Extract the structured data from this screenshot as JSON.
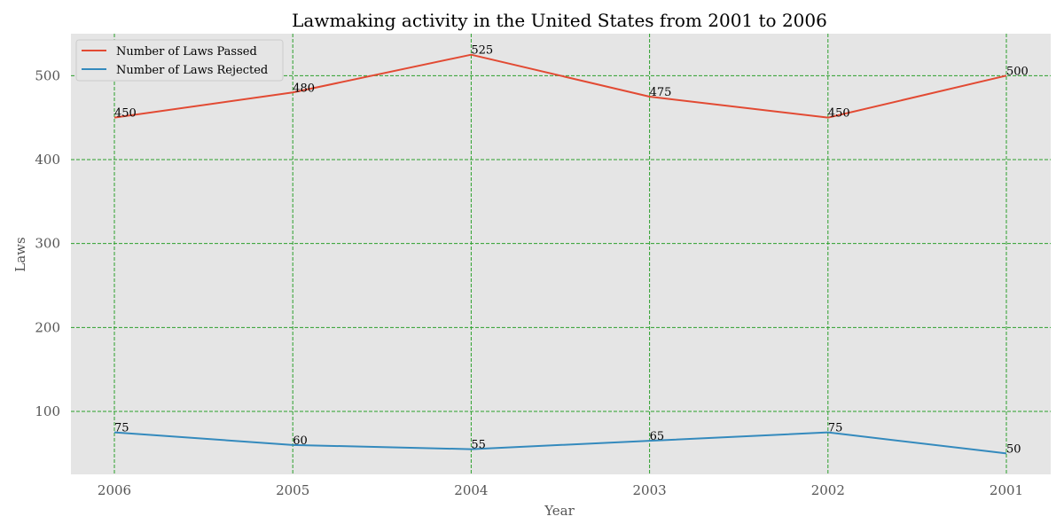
{
  "chart_data": {
    "type": "line",
    "title": "Lawmaking activity in the United States from 2001 to 2006",
    "xlabel": "Year",
    "ylabel": "Laws",
    "categories": [
      "2006",
      "2005",
      "2004",
      "2003",
      "2002",
      "2001"
    ],
    "ylim": [
      25,
      550
    ],
    "yticks": [
      100,
      200,
      300,
      400,
      500
    ],
    "grid": true,
    "grid_color": "#2ca02c",
    "plot_background": "#e5e5e5",
    "legend_position": "upper-left",
    "series": [
      {
        "name": "Number of Laws Passed",
        "color": "#e24a33",
        "values": [
          450,
          480,
          525,
          475,
          450,
          500
        ]
      },
      {
        "name": "Number of Laws Rejected",
        "color": "#348abd",
        "values": [
          75,
          60,
          55,
          65,
          75,
          50
        ]
      }
    ]
  }
}
